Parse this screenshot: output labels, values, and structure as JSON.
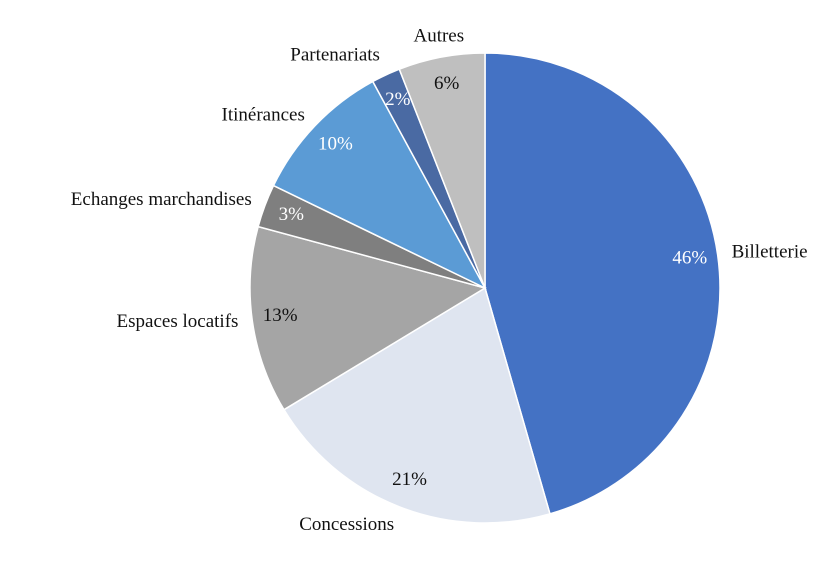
{
  "chart_data": {
    "type": "pie",
    "categories": [
      "Billetterie",
      "Concessions",
      "Espaces locatifs",
      "Echanges marchandises",
      "Itinérances",
      "Partenariats",
      "Autres"
    ],
    "values": [
      46,
      21,
      13,
      3,
      10,
      2,
      6
    ],
    "value_labels": [
      "46%",
      "21%",
      "13%",
      "3%",
      "10%",
      "2%",
      "6%"
    ],
    "colors": [
      "#4472c4",
      "#dfe5f0",
      "#a5a5a5",
      "#7f7f7f",
      "#5b9bd5",
      "#4a6aa3",
      "#bfbfbf"
    ]
  }
}
